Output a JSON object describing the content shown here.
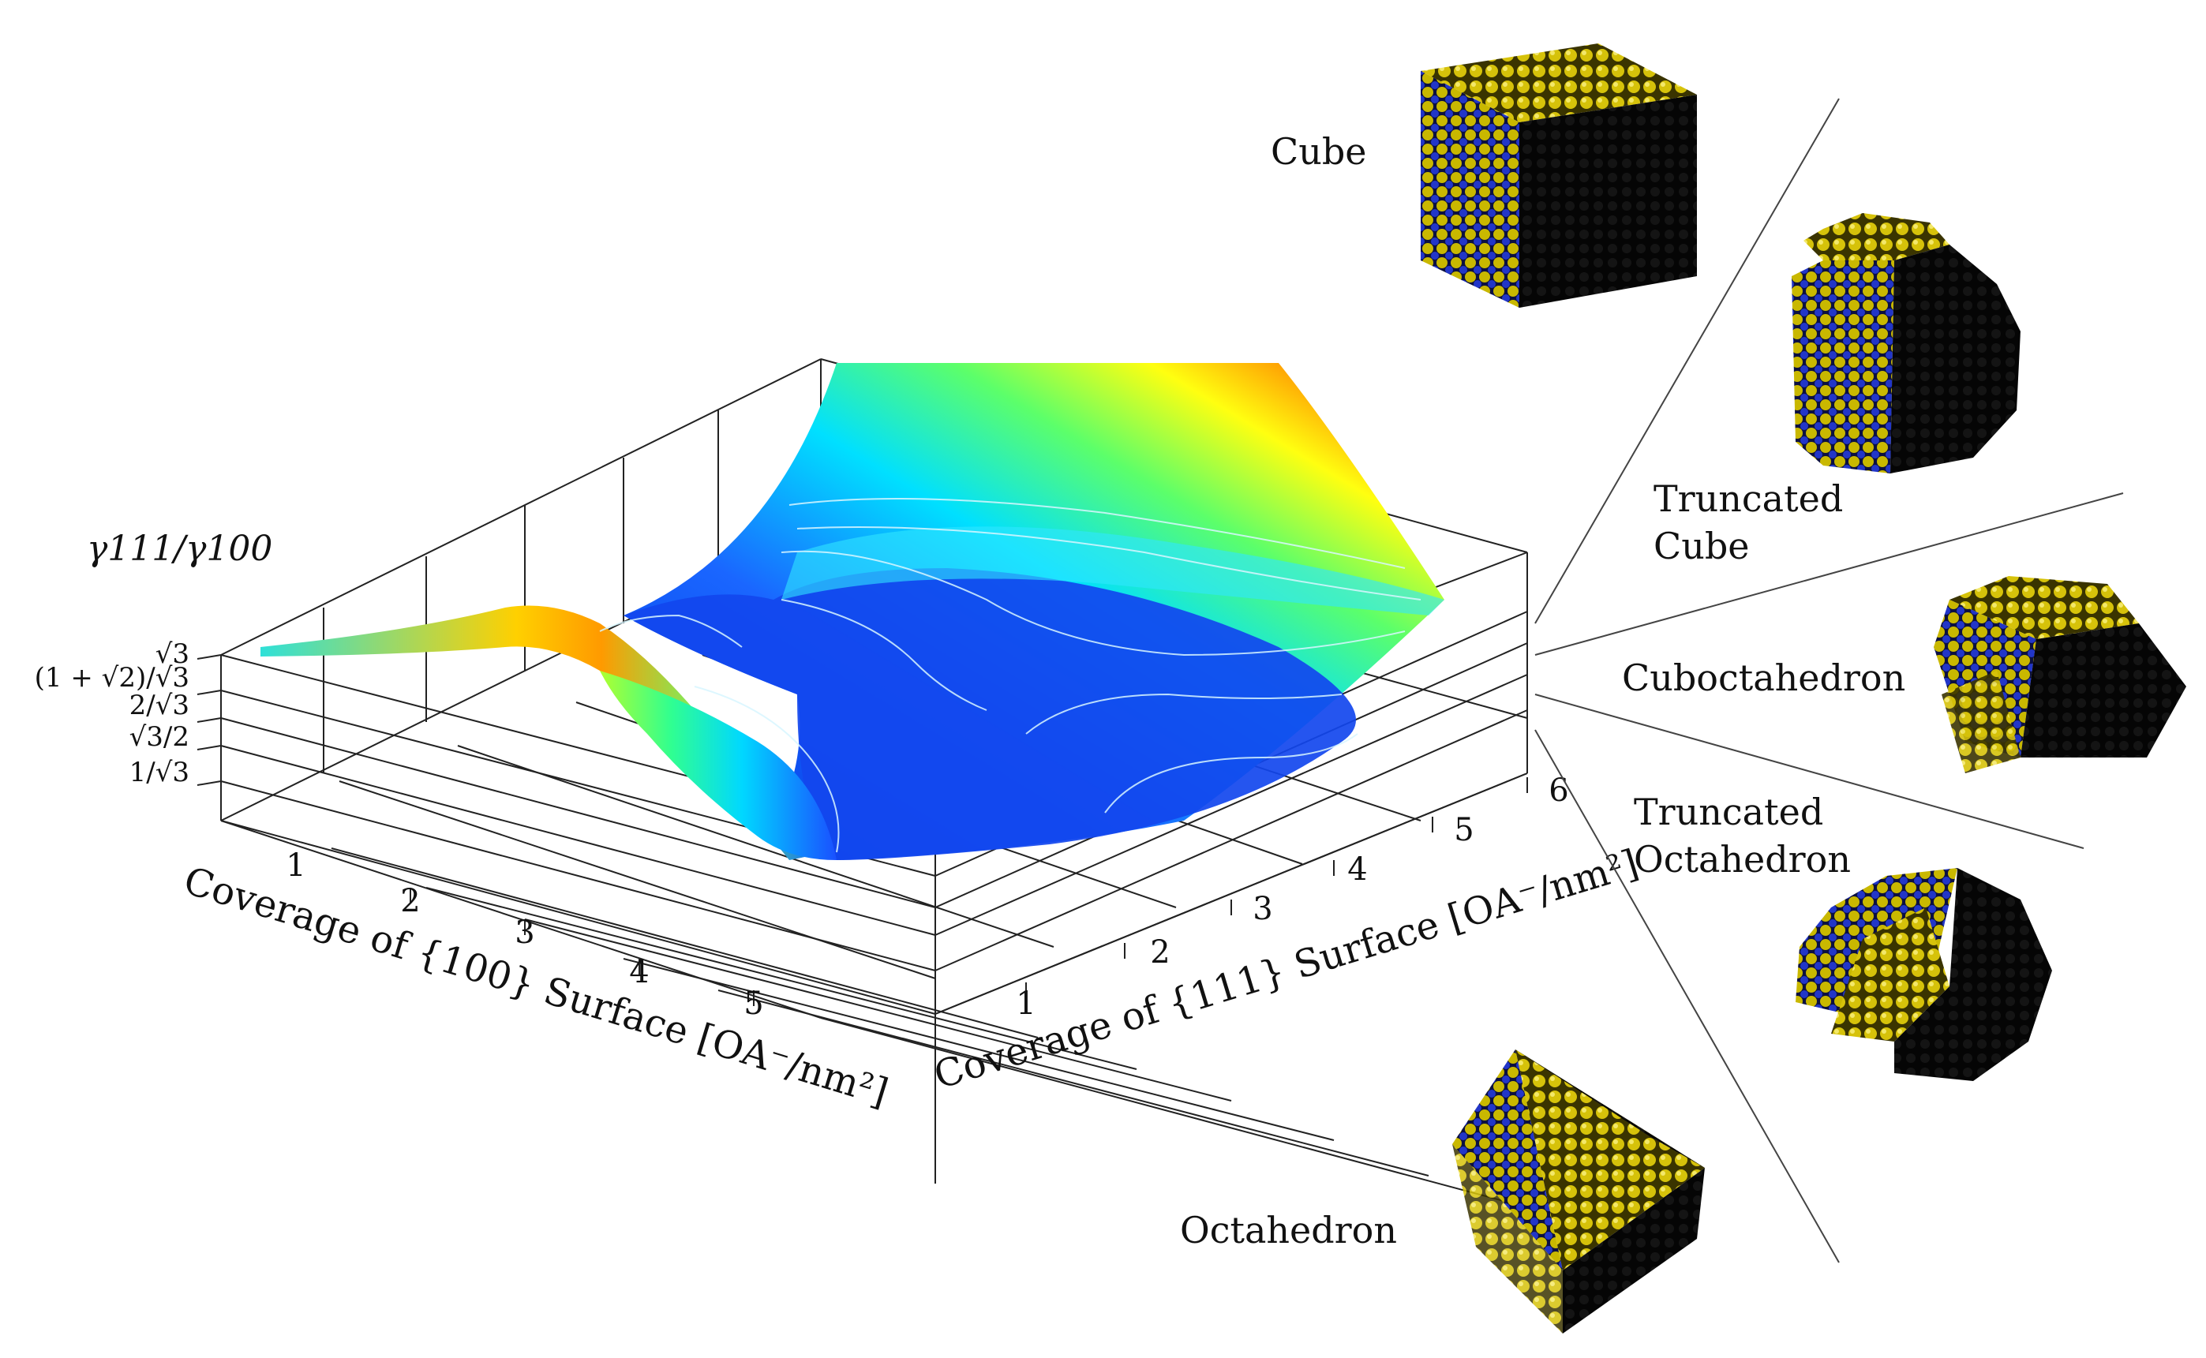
{
  "chart_data": {
    "type": "surface3d",
    "x_axis": {
      "label": "Coverage of {100} Surface [OA⁻/nm²]",
      "ticks": [
        "1",
        "2",
        "3",
        "4",
        "5"
      ]
    },
    "y_axis": {
      "label": "Coverage of {111} Surface [OA⁻/nm²]",
      "ticks": [
        "1",
        "2",
        "3",
        "4",
        "5",
        "6"
      ]
    },
    "z_axis": {
      "label": "γ111/γ100",
      "ticks": [
        "√3",
        "(1 + √2)/√3",
        "2/√3",
        "√3/2",
        "1/√3"
      ]
    },
    "colormap": [
      "#0033dd",
      "#1a66ff",
      "#00e5ff",
      "#66ff66",
      "#ffff00",
      "#ff8800",
      "#ff1a00"
    ],
    "grid": true
  },
  "shapes": [
    {
      "key": "cube",
      "label_lines": [
        "Cube"
      ]
    },
    {
      "key": "truncated_cube",
      "label_lines": [
        "Truncated",
        "Cube"
      ]
    },
    {
      "key": "cuboctahedron",
      "label_lines": [
        "Cuboctahedron"
      ]
    },
    {
      "key": "truncated_octahedron",
      "label_lines": [
        "Truncated",
        "Octahedron"
      ]
    },
    {
      "key": "octahedron",
      "label_lines": [
        "Octahedron"
      ]
    }
  ],
  "colors": {
    "atom_yellow": "#c8b400",
    "atom_blue": "#1a2a9a",
    "dark_face": "#0b0b0b"
  }
}
